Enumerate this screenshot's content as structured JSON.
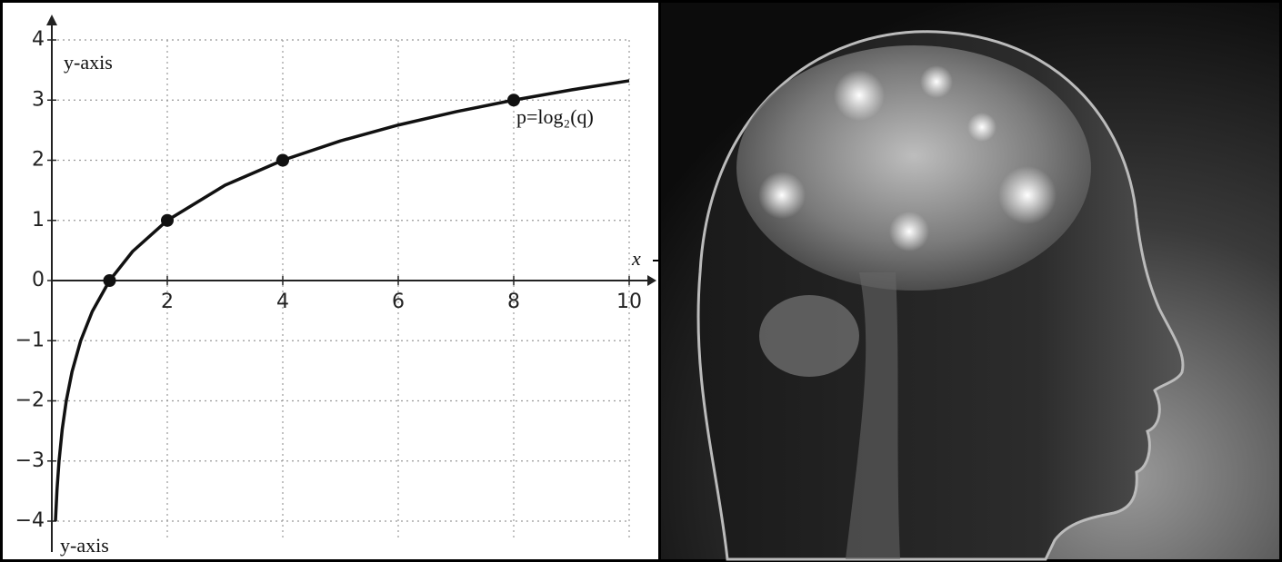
{
  "chart_data": {
    "type": "line",
    "annotations": [
      "y-axis",
      "x",
      "p=log₂(q)",
      "y-axis"
    ],
    "series": [
      {
        "color": "#111111",
        "line": true,
        "markers": false,
        "x": [
          0.0625,
          0.09,
          0.125,
          0.18,
          0.25,
          0.35,
          0.5,
          0.7,
          1,
          1.4,
          2,
          3,
          4,
          5,
          6,
          7,
          8,
          9,
          10
        ],
        "values": [
          -4,
          -3.474,
          -3,
          -2.474,
          -2,
          -1.515,
          -1,
          -0.515,
          0,
          0.485,
          1,
          1.585,
          2,
          2.322,
          2.585,
          2.807,
          3,
          3.17,
          3.322
        ]
      },
      {
        "color": "#111111",
        "line": false,
        "markers": true,
        "x": [
          1,
          2,
          4,
          8
        ],
        "values": [
          0,
          1,
          2,
          3
        ]
      }
    ],
    "xlim": [
      0,
      10
    ],
    "ylim": [
      -4.3,
      4
    ],
    "xticks": [
      2,
      4,
      6,
      8,
      10
    ],
    "yticks": [
      {
        "value": -4,
        "label": "−4"
      },
      {
        "value": -3,
        "label": "−3"
      },
      {
        "value": -2,
        "label": "−2"
      },
      {
        "value": -1,
        "label": "−1"
      },
      0,
      1,
      2,
      3,
      4
    ],
    "grid": true
  }
}
